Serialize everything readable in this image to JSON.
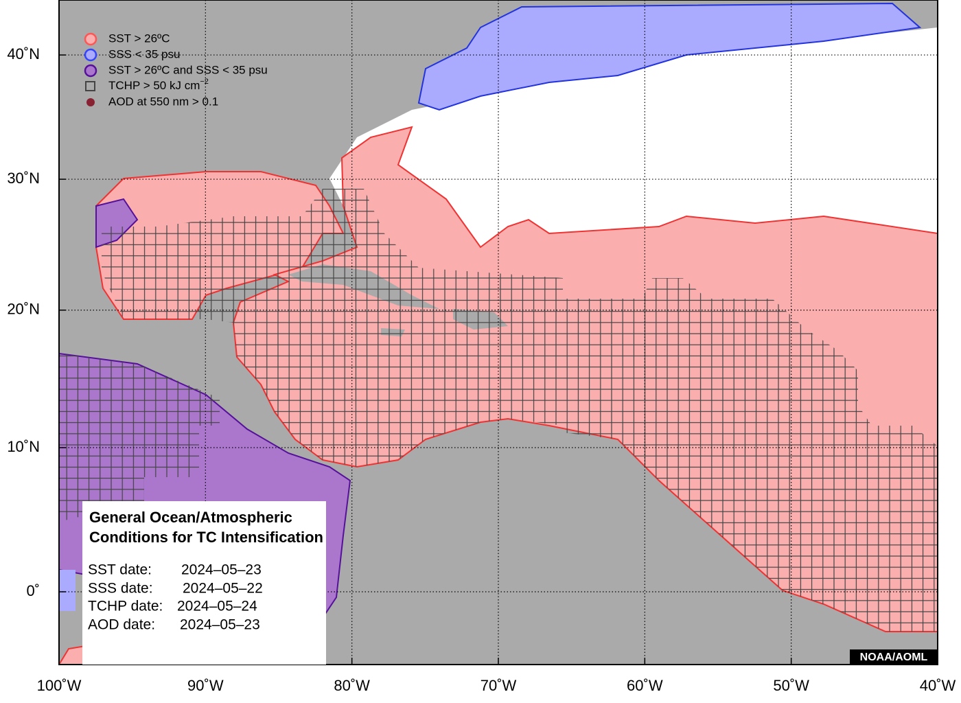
{
  "map": {
    "legend": [
      {
        "label": "SST > 26ºC"
      },
      {
        "label": "SSS < 35 psu"
      },
      {
        "label": "SST > 26ºC and SSS < 35 psu"
      },
      {
        "label": "TCHP > 50 kJ cm",
        "superscript": "−2"
      },
      {
        "label": "AOD at 550 nm > 0.1"
      }
    ],
    "info": {
      "title": [
        "General Ocean/Atmospheric",
        "Conditions for TC Intensification"
      ],
      "rows": [
        {
          "label": "SST date:",
          "value": "2024–05–23"
        },
        {
          "label": "SSS date:",
          "value": "2024–05–22"
        },
        {
          "label": "TCHP date:",
          "value": "2024–05–24"
        },
        {
          "label": "AOD date:",
          "value": "2024–05–23"
        }
      ]
    },
    "credit": "NOAA/AOML",
    "xticks": [
      {
        "value": -100,
        "label": "100˚W"
      },
      {
        "value": -90,
        "label": "90˚W"
      },
      {
        "value": -80,
        "label": "80˚W"
      },
      {
        "value": -70,
        "label": "70˚W"
      },
      {
        "value": -60,
        "label": "60˚W"
      },
      {
        "value": -50,
        "label": "50˚W"
      },
      {
        "value": -40,
        "label": "40˚W"
      }
    ],
    "yticks": [
      {
        "value": 0,
        "label": "0˚"
      },
      {
        "value": 10,
        "label": "10˚N"
      },
      {
        "value": 20,
        "label": "20˚N"
      },
      {
        "value": 30,
        "label": "30˚N"
      },
      {
        "value": 40,
        "label": "40˚N"
      }
    ]
  }
}
